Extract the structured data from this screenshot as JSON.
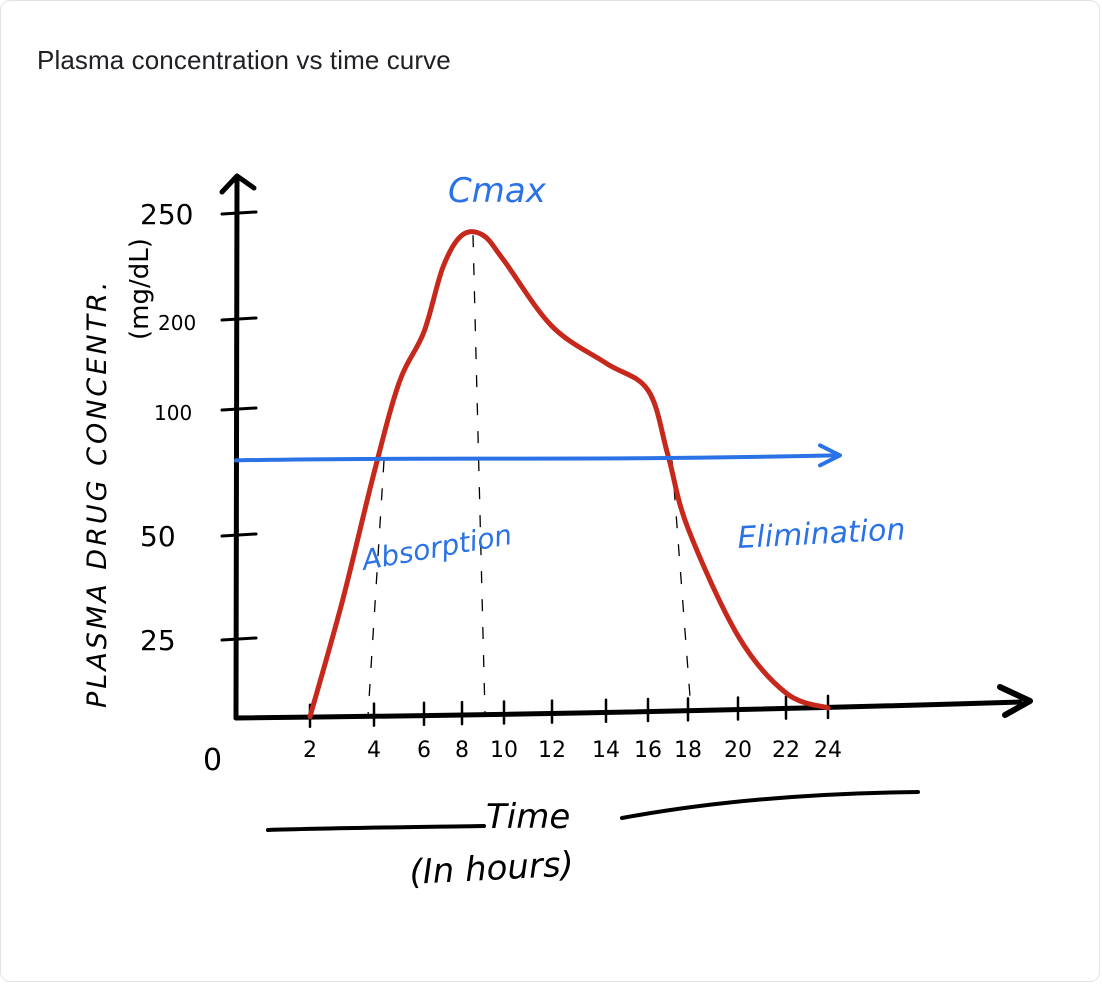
{
  "card": {
    "title": "Plasma concentration vs time curve"
  },
  "colors": {
    "axis": "#000000",
    "curve": "#c6281c",
    "threshold": "#2a72e5",
    "annotation": "#2a72e5",
    "guide": "#000000"
  },
  "chart_data": {
    "type": "line",
    "title": "",
    "xlabel": "Time",
    "xlabel_sub": "(In hours)",
    "ylabel": "PLASMA DRUG CONCENTR.",
    "ylabel_unit": "(mg/dL)",
    "origin_label": "0",
    "x_ticks": [
      "2",
      "4",
      "6",
      "8",
      "10",
      "12",
      "14",
      "16",
      "18",
      "20",
      "22",
      "24"
    ],
    "y_ticks": [
      "25",
      "50",
      "100",
      "200",
      "250"
    ],
    "series": [
      {
        "kind": "concentration-curve",
        "points": [
          {
            "x": 2,
            "y": 0
          },
          {
            "x": 3,
            "y": 34
          },
          {
            "x": 4,
            "y": 75
          },
          {
            "x": 5,
            "y": 130
          },
          {
            "x": 6,
            "y": 187
          },
          {
            "x": 7,
            "y": 225
          },
          {
            "x": 8,
            "y": 240
          },
          {
            "x": 9,
            "y": 240
          },
          {
            "x": 10,
            "y": 228
          },
          {
            "x": 12,
            "y": 193
          },
          {
            "x": 14,
            "y": 152
          },
          {
            "x": 16,
            "y": 122
          },
          {
            "x": 17,
            "y": 82
          },
          {
            "x": 18,
            "y": 53
          },
          {
            "x": 20,
            "y": 26
          },
          {
            "x": 22,
            "y": 8
          },
          {
            "x": 24,
            "y": 0
          }
        ]
      },
      {
        "kind": "threshold-line",
        "points": [
          {
            "x": 0,
            "y": 80
          },
          {
            "x": 24,
            "y": 82
          }
        ]
      }
    ],
    "annotations": [
      {
        "text": "Cmax",
        "at_x": 9
      },
      {
        "text": "Absorption"
      },
      {
        "text": "Elimination"
      }
    ]
  }
}
